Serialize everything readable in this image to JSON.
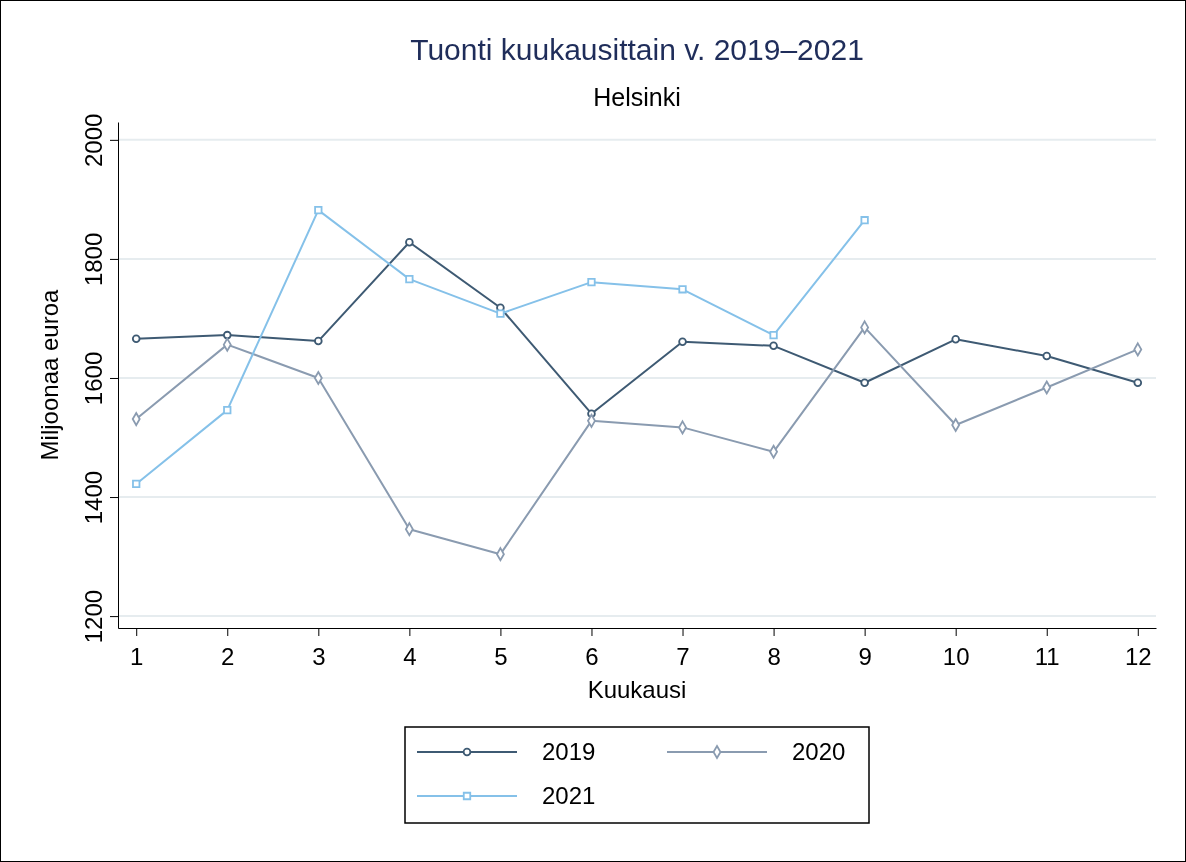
{
  "chart_data": {
    "type": "line",
    "title": "Tuonti kuukausittain v. 2019–2021",
    "subtitle": "Helsinki",
    "xlabel": "Kuukausi",
    "ylabel": "Miljoonaa euroa",
    "x": [
      1,
      2,
      3,
      4,
      5,
      6,
      7,
      8,
      9,
      10,
      11,
      12
    ],
    "xlim": [
      0.8,
      12.2
    ],
    "xticks": [
      1,
      2,
      3,
      4,
      5,
      6,
      7,
      8,
      9,
      10,
      11,
      12
    ],
    "ylim": [
      1180,
      2030
    ],
    "yticks": [
      1200,
      1400,
      1600,
      1800,
      2000
    ],
    "grid": "y",
    "legend": "bottom",
    "series": [
      {
        "name": "2019",
        "color": "#3e5a73",
        "marker": "circle",
        "values": [
          1666,
          1672,
          1662,
          1828,
          1718,
          1540,
          1661,
          1654,
          1592,
          1665,
          1637,
          1592
        ]
      },
      {
        "name": "2020",
        "color": "#8a9bb0",
        "marker": "diamond",
        "values": [
          1531,
          1656,
          1600,
          1346,
          1304,
          1528,
          1517,
          1476,
          1685,
          1521,
          1584,
          1648
        ]
      },
      {
        "name": "2021",
        "color": "#85c1e9",
        "marker": "square",
        "values": [
          1422,
          1546,
          1882,
          1766,
          1708,
          1761,
          1749,
          1672,
          1865,
          null,
          null,
          null
        ]
      }
    ]
  }
}
